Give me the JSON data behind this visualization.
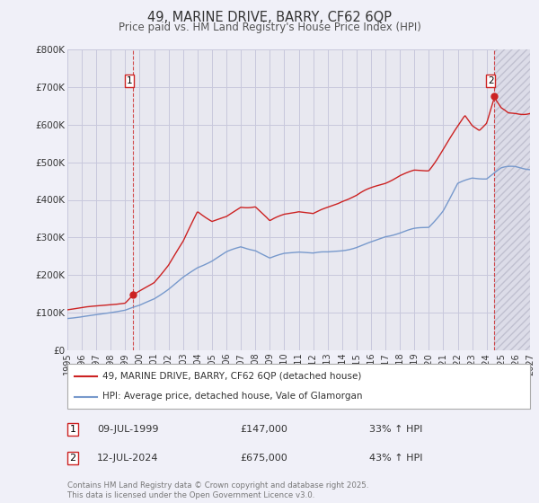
{
  "title": "49, MARINE DRIVE, BARRY, CF62 6QP",
  "subtitle": "Price paid vs. HM Land Registry's House Price Index (HPI)",
  "title_fontsize": 10.5,
  "subtitle_fontsize": 8.5,
  "background_color": "#f0f0f8",
  "plot_bg_color": "#f0f0f8",
  "chart_bg_color": "#e8e8f0",
  "hatch_bg_color": "#dcdce8",
  "grid_color": "#c8c8dc",
  "hpi_line_color": "#7799cc",
  "price_line_color": "#cc2222",
  "sale1_date": 1999.52,
  "sale1_price": 147000,
  "sale2_date": 2024.53,
  "sale2_price": 675000,
  "xmin": 1995,
  "xmax": 2027,
  "ymin": 0,
  "ymax": 800000,
  "yticks": [
    0,
    100000,
    200000,
    300000,
    400000,
    500000,
    600000,
    700000,
    800000
  ],
  "ytick_labels": [
    "£0",
    "£100K",
    "£200K",
    "£300K",
    "£400K",
    "£500K",
    "£600K",
    "£700K",
    "£800K"
  ],
  "xticks": [
    1995,
    1996,
    1997,
    1998,
    1999,
    2000,
    2001,
    2002,
    2003,
    2004,
    2005,
    2006,
    2007,
    2008,
    2009,
    2010,
    2011,
    2012,
    2013,
    2014,
    2015,
    2016,
    2017,
    2018,
    2019,
    2020,
    2021,
    2022,
    2023,
    2024,
    2025,
    2026,
    2027
  ],
  "legend_label1": "49, MARINE DRIVE, BARRY, CF62 6QP (detached house)",
  "legend_label2": "HPI: Average price, detached house, Vale of Glamorgan",
  "footnote": "Contains HM Land Registry data © Crown copyright and database right 2025.\nThis data is licensed under the Open Government Licence v3.0.",
  "table_rows": [
    [
      "1",
      "09-JUL-1999",
      "£147,000",
      "33% ↑ HPI"
    ],
    [
      "2",
      "12-JUL-2024",
      "£675,000",
      "43% ↑ HPI"
    ]
  ],
  "hpi_controls": [
    [
      1995,
      88000
    ],
    [
      1996,
      91000
    ],
    [
      1997,
      95000
    ],
    [
      1998,
      100000
    ],
    [
      1999,
      105000
    ],
    [
      2000,
      118000
    ],
    [
      2001,
      138000
    ],
    [
      2002,
      165000
    ],
    [
      2003,
      195000
    ],
    [
      2004,
      220000
    ],
    [
      2005,
      235000
    ],
    [
      2006,
      255000
    ],
    [
      2007,
      270000
    ],
    [
      2008,
      262000
    ],
    [
      2009,
      238000
    ],
    [
      2010,
      248000
    ],
    [
      2011,
      252000
    ],
    [
      2012,
      248000
    ],
    [
      2013,
      255000
    ],
    [
      2014,
      268000
    ],
    [
      2015,
      280000
    ],
    [
      2016,
      295000
    ],
    [
      2017,
      312000
    ],
    [
      2018,
      320000
    ],
    [
      2019,
      330000
    ],
    [
      2020,
      338000
    ],
    [
      2021,
      385000
    ],
    [
      2022,
      450000
    ],
    [
      2023,
      460000
    ],
    [
      2024,
      455000
    ],
    [
      2025,
      478000
    ],
    [
      2026,
      488000
    ],
    [
      2027,
      492000
    ]
  ],
  "price_controls": [
    [
      1995,
      112000
    ],
    [
      1996,
      115000
    ],
    [
      1997,
      118000
    ],
    [
      1998,
      122000
    ],
    [
      1999,
      126000
    ],
    [
      1999.52,
      147000
    ],
    [
      2000,
      160000
    ],
    [
      2001,
      185000
    ],
    [
      2002,
      230000
    ],
    [
      2003,
      290000
    ],
    [
      2004,
      375000
    ],
    [
      2005,
      350000
    ],
    [
      2006,
      362000
    ],
    [
      2007,
      390000
    ],
    [
      2008,
      385000
    ],
    [
      2009,
      335000
    ],
    [
      2010,
      348000
    ],
    [
      2011,
      355000
    ],
    [
      2012,
      348000
    ],
    [
      2013,
      368000
    ],
    [
      2014,
      388000
    ],
    [
      2015,
      400000
    ],
    [
      2016,
      420000
    ],
    [
      2017,
      442000
    ],
    [
      2018,
      468000
    ],
    [
      2019,
      488000
    ],
    [
      2020,
      495000
    ],
    [
      2021,
      548000
    ],
    [
      2022,
      595000
    ],
    [
      2022.5,
      622000
    ],
    [
      2023,
      598000
    ],
    [
      2023.5,
      588000
    ],
    [
      2024.0,
      608000
    ],
    [
      2024.53,
      675000
    ],
    [
      2025,
      648000
    ],
    [
      2025.5,
      638000
    ],
    [
      2026,
      643000
    ],
    [
      2027,
      648000
    ]
  ]
}
